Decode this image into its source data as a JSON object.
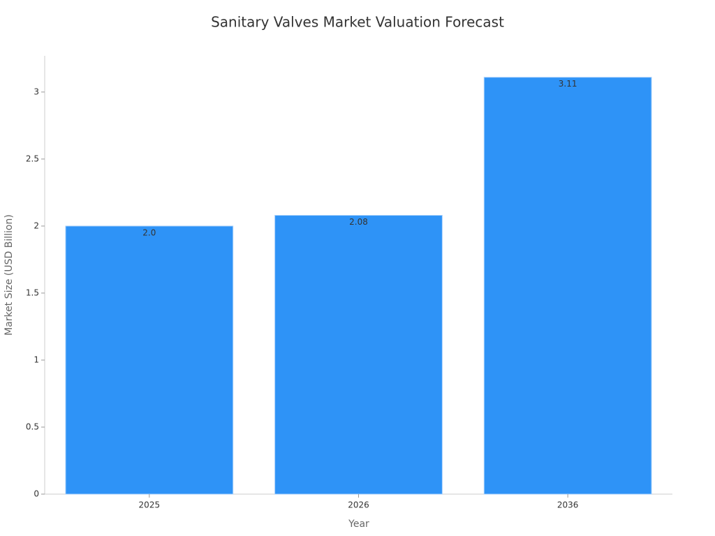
{
  "chart_data": {
    "type": "bar",
    "title": "Sanitary Valves Market Valuation Forecast",
    "x_label": "Year",
    "y_label": "Market Size (USD Billion)",
    "categories": [
      "2025",
      "2026",
      "2036"
    ],
    "values": [
      2.0,
      2.08,
      3.11
    ],
    "value_labels": [
      "2.0",
      "2.08",
      "3.11"
    ],
    "color": "#2e93f7",
    "ylim": [
      0,
      3.27
    ],
    "yticks": [
      0,
      0.5,
      1,
      1.5,
      2,
      2.5,
      3
    ],
    "grid": false
  }
}
